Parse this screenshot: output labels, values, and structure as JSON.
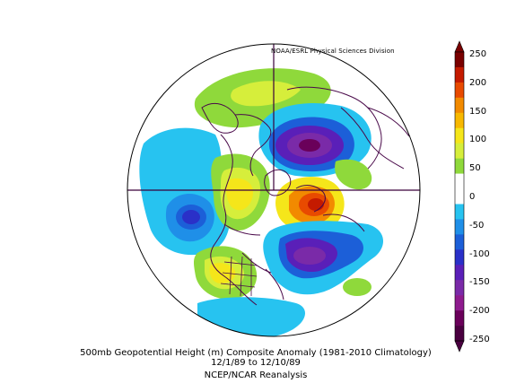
{
  "credit": "NOAA/ESRL Physical Sciences Division",
  "caption": {
    "line1": "500mb Geopotential Height (m) Composite Anomaly (1981-2010 Climatology)",
    "line2": "12/1/89  to 12/10/89",
    "line3": "NCEP/NCAR Reanalysis"
  },
  "colorbar": {
    "labels": [
      "250",
      "200",
      "150",
      "100",
      "50",
      "0",
      "-50",
      "-100",
      "-150",
      "-200",
      "-250"
    ],
    "colors": [
      "#7a0000",
      "#c41a00",
      "#e84a00",
      "#f28a00",
      "#f7b800",
      "#f5e61a",
      "#d6ee3b",
      "#8fd93b",
      "#ffffff",
      "#ffffff",
      "#27c3f0",
      "#1f8fe8",
      "#1c5fd8",
      "#2a30c8",
      "#5a1fb8",
      "#7a2aa8",
      "#8e1b8e",
      "#6a005a",
      "#4a0040"
    ]
  },
  "map": {
    "projection": "north polar stereographic",
    "features": [
      {
        "name": "alaska-positive-anomaly",
        "color": "#8fd93b"
      },
      {
        "name": "siberia-negative-anomaly",
        "color": "#5a1fb8"
      },
      {
        "name": "europe-positive-anomaly",
        "color": "#e84a00"
      },
      {
        "name": "atlantic-negative-anomaly",
        "color": "#7a2aa8"
      },
      {
        "name": "pacific-negative-anomaly",
        "color": "#2a30c8"
      },
      {
        "name": "north-america-positive-anomaly",
        "color": "#f7b800"
      }
    ]
  }
}
